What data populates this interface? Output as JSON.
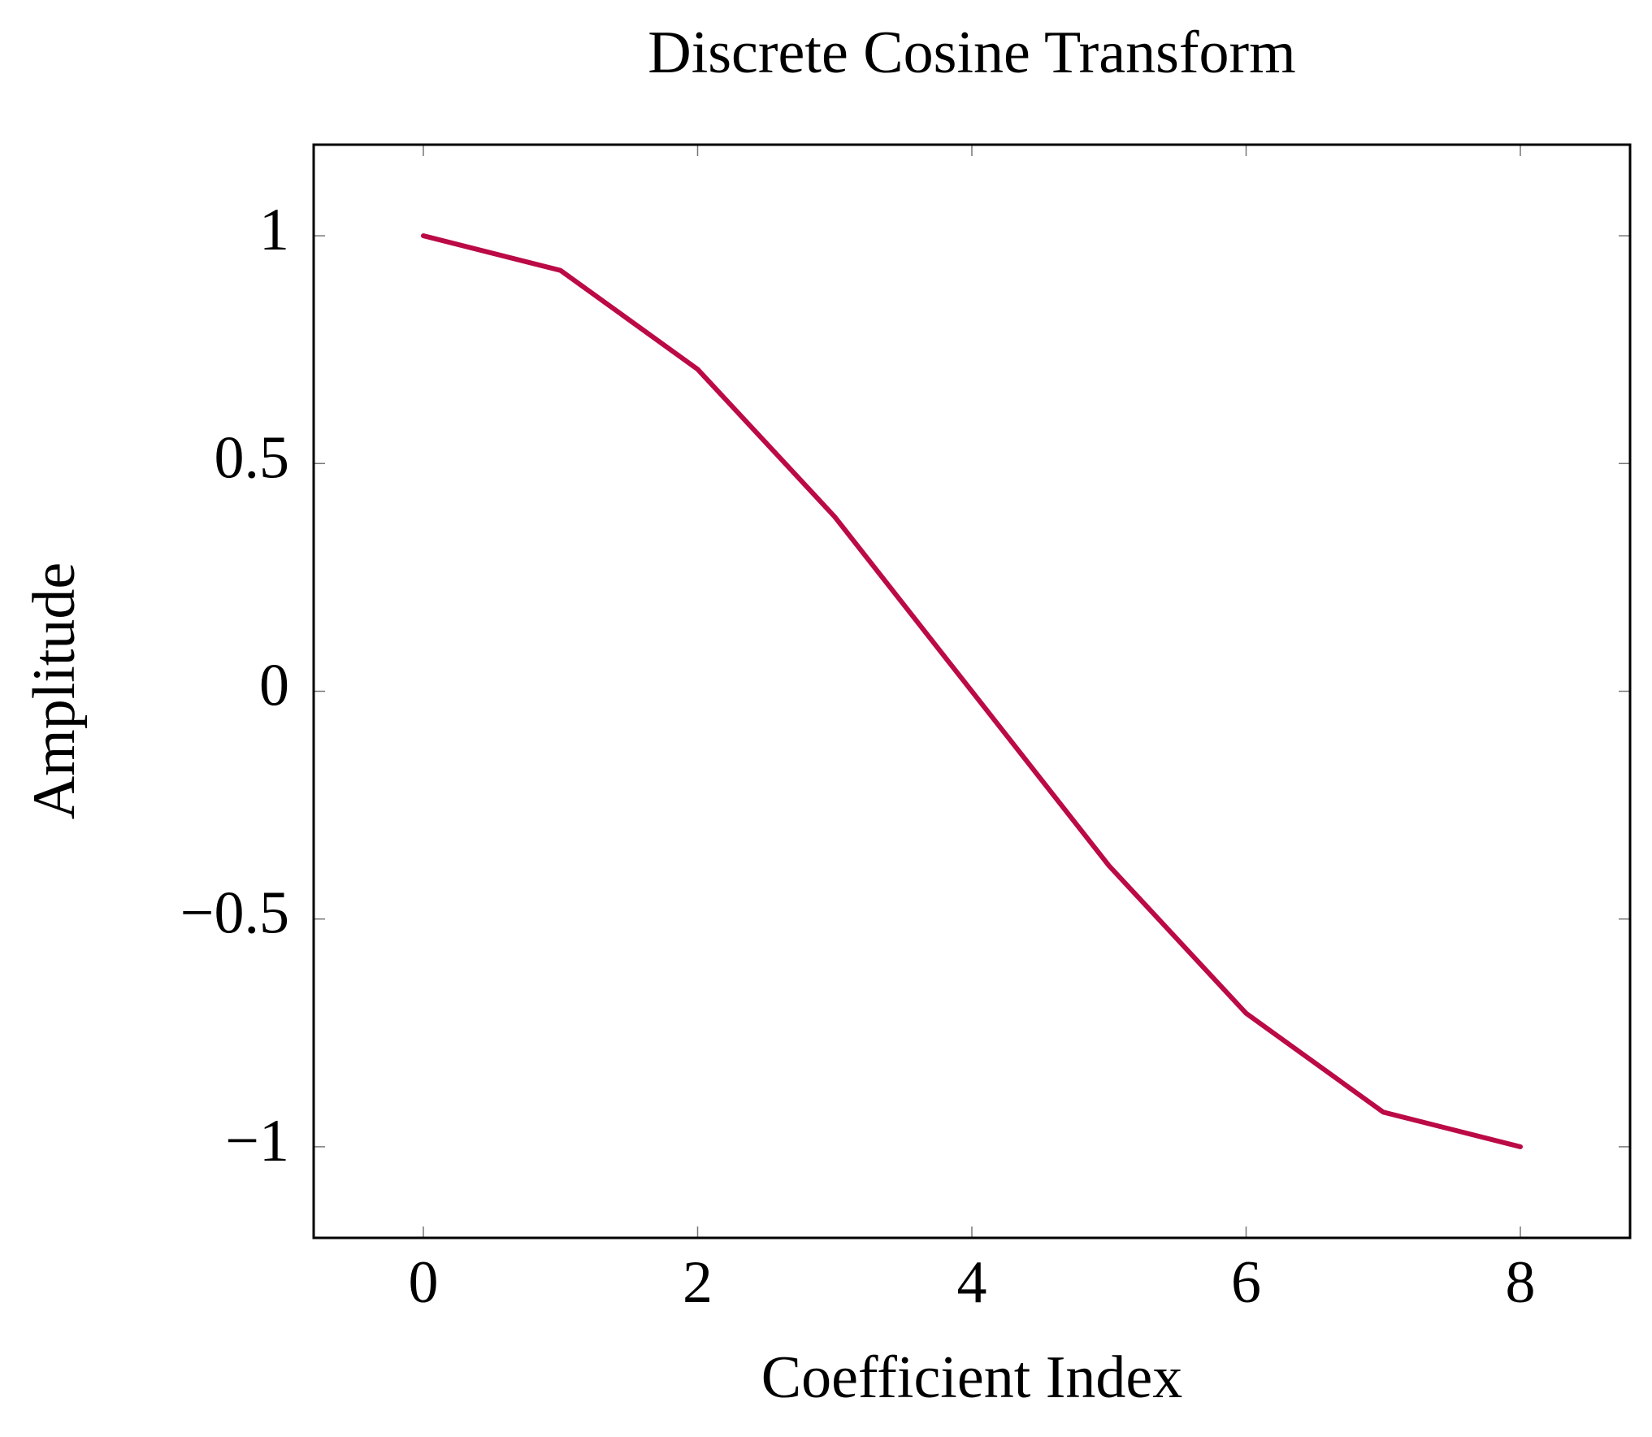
{
  "chart_data": {
    "type": "line",
    "title": "Discrete Cosine Transform",
    "x_label": "Coefficient Index",
    "y_label": "Amplitude",
    "x": [
      0,
      1,
      2,
      3,
      4,
      5,
      6,
      7,
      8
    ],
    "series": [
      {
        "name": "Amplitude",
        "color": "#bb0a45",
        "values": [
          1,
          0.924,
          0.707,
          0.383,
          0,
          -0.383,
          -0.707,
          -0.924,
          -1
        ]
      }
    ],
    "xlim": [
      -0.8,
      8.8
    ],
    "ylim": [
      -1.2,
      1.2
    ],
    "xticks": [
      0,
      2,
      4,
      6,
      8
    ],
    "yticks": [
      {
        "value": -1,
        "label": "−1"
      },
      {
        "value": -0.5,
        "label": "−0.5"
      },
      0,
      0.5,
      1
    ],
    "grid": false,
    "legend": false
  }
}
